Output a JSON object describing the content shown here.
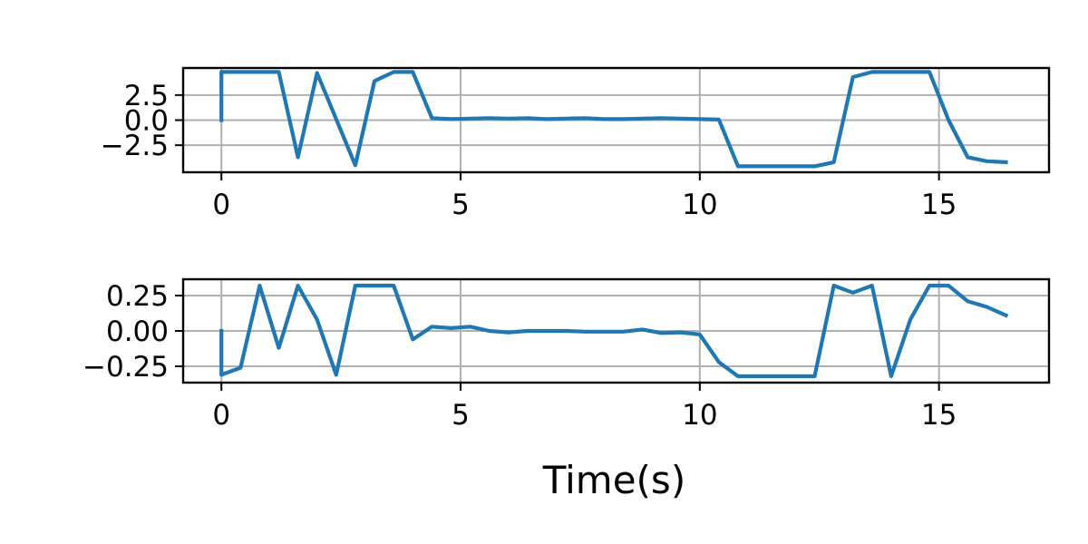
{
  "chart_data": [
    {
      "type": "line",
      "title": "",
      "xlabel": "",
      "ylabel": "",
      "xlim": [
        -0.8,
        17.3
      ],
      "ylim": [
        -5.2,
        5.2
      ],
      "grid": true,
      "xticks": [
        0,
        5,
        10,
        15
      ],
      "xtick_labels": [
        "0",
        "5",
        "10",
        "15"
      ],
      "yticks": [
        -2.5,
        0.0,
        2.5
      ],
      "ytick_labels": [
        "−2.5",
        "0.0",
        "2.5"
      ],
      "color": "#1f77b4",
      "series": [
        {
          "x": [
            0,
            0,
            0.4,
            0.8,
            1.2,
            1.6,
            2.0,
            2.4,
            2.8,
            3.2,
            3.6,
            4.0,
            4.4,
            4.8,
            5.2,
            5.6,
            6.0,
            6.4,
            6.8,
            7.2,
            7.6,
            8.0,
            8.4,
            8.8,
            9.2,
            9.6,
            10.0,
            10.4,
            10.8,
            11.2,
            11.6,
            12.0,
            12.4,
            12.8,
            13.2,
            13.6,
            14.0,
            14.4,
            14.8,
            15.2,
            15.6,
            16.0,
            16.4
          ],
          "y": [
            0,
            4.8,
            4.8,
            4.8,
            4.8,
            -3.7,
            4.7,
            0.1,
            -4.5,
            3.9,
            4.8,
            4.8,
            0.2,
            0.1,
            0.15,
            0.2,
            0.15,
            0.2,
            0.1,
            0.15,
            0.2,
            0.1,
            0.1,
            0.15,
            0.2,
            0.15,
            0.1,
            0.05,
            -4.6,
            -4.6,
            -4.6,
            -4.6,
            -4.6,
            -4.2,
            4.3,
            4.8,
            4.8,
            4.8,
            4.8,
            0.0,
            -3.7,
            -4.1,
            -4.2
          ]
        }
      ]
    },
    {
      "type": "line",
      "title": "",
      "xlabel": "Time(s)",
      "ylabel": "",
      "xlim": [
        -0.8,
        17.3
      ],
      "ylim": [
        -0.365,
        0.365
      ],
      "grid": true,
      "xticks": [
        0,
        5,
        10,
        15
      ],
      "xtick_labels": [
        "0",
        "5",
        "10",
        "15"
      ],
      "yticks": [
        -0.25,
        0.0,
        0.25
      ],
      "ytick_labels": [
        "−0.25",
        "0.00",
        "0.25"
      ],
      "color": "#1f77b4",
      "series": [
        {
          "x": [
            0,
            0,
            0.4,
            0.8,
            1.2,
            1.6,
            2.0,
            2.4,
            2.8,
            3.2,
            3.6,
            4.0,
            4.4,
            4.8,
            5.2,
            5.6,
            6.0,
            6.4,
            6.8,
            7.2,
            7.6,
            8.0,
            8.4,
            8.8,
            9.2,
            9.6,
            10.0,
            10.4,
            10.8,
            11.2,
            11.6,
            12.0,
            12.4,
            12.8,
            13.2,
            13.6,
            14.0,
            14.4,
            14.8,
            15.0,
            15.2,
            15.6,
            16.0,
            16.4
          ],
          "y": [
            0,
            -0.31,
            -0.26,
            0.32,
            -0.12,
            0.32,
            0.08,
            -0.31,
            0.32,
            0.32,
            0.32,
            -0.06,
            0.03,
            0.02,
            0.03,
            0.0,
            -0.01,
            0.0,
            0.0,
            0.0,
            -0.005,
            -0.005,
            -0.005,
            0.01,
            -0.015,
            -0.01,
            -0.025,
            -0.22,
            -0.32,
            -0.32,
            -0.32,
            -0.32,
            -0.32,
            0.32,
            0.27,
            0.32,
            -0.32,
            0.08,
            0.32,
            0.32,
            0.32,
            0.21,
            0.17,
            0.11
          ]
        }
      ]
    }
  ]
}
